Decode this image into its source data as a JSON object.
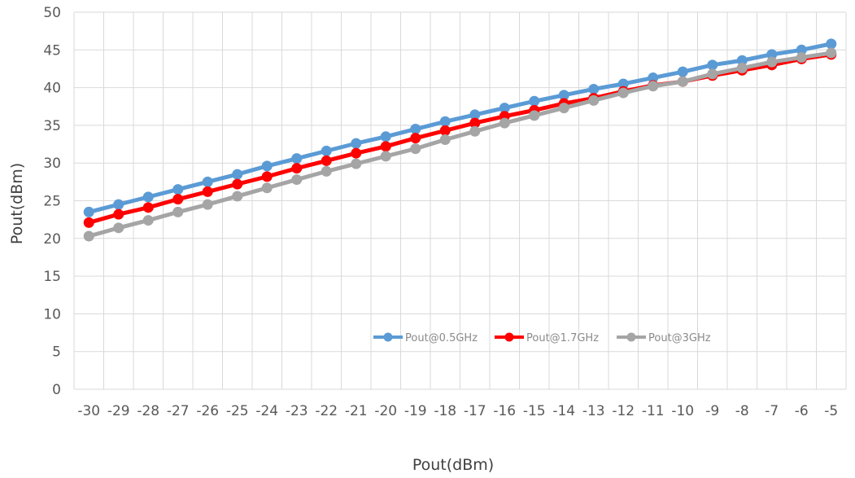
{
  "chart_data": {
    "type": "line",
    "xlabel": "Pout(dBm)",
    "ylabel": "Pout(dBm)",
    "x": [
      -30,
      -29,
      -28,
      -27,
      -26,
      -25,
      -24,
      -23,
      -22,
      -21,
      -20,
      -19,
      -18,
      -17,
      -16,
      -15,
      -14,
      -13,
      -12,
      -11,
      -10,
      -9,
      -8,
      -7,
      -6,
      -5
    ],
    "x_tick_labels": [
      "-30",
      "-29",
      "-28",
      "-27",
      "-26",
      "-25",
      "-24",
      "-23",
      "-22",
      "-21",
      "-20",
      "-19",
      "-18",
      "-17",
      "-16",
      "-15",
      "-14",
      "-13",
      "-12",
      "-11",
      "-10",
      "-9",
      "-8",
      "-7",
      "-6",
      "-5"
    ],
    "ylim": [
      0,
      50
    ],
    "y_ticks": [
      0,
      5,
      10,
      15,
      20,
      25,
      30,
      35,
      40,
      45,
      50
    ],
    "grid": true,
    "legend_position": "bottom-right",
    "series": [
      {
        "name": "Pout@0.5GHz",
        "color": "#5B9BD5",
        "values": [
          23.5,
          24.5,
          25.5,
          26.5,
          27.5,
          28.5,
          29.6,
          30.6,
          31.6,
          32.6,
          33.5,
          34.5,
          35.5,
          36.4,
          37.3,
          38.2,
          39.0,
          39.8,
          40.5,
          41.3,
          42.1,
          43.0,
          43.6,
          44.4,
          45.0,
          45.8
        ]
      },
      {
        "name": "Pout@1.7GHz",
        "color": "#FF0000",
        "values": [
          22.1,
          23.2,
          24.1,
          25.2,
          26.2,
          27.2,
          28.2,
          29.3,
          30.3,
          31.3,
          32.2,
          33.3,
          34.3,
          35.3,
          36.2,
          37.0,
          37.9,
          38.6,
          39.5,
          40.3,
          40.8,
          41.6,
          42.3,
          43.0,
          43.8,
          44.4
        ]
      },
      {
        "name": "Pout@3GHz",
        "color": "#A5A5A5",
        "values": [
          20.3,
          21.4,
          22.4,
          23.5,
          24.5,
          25.6,
          26.7,
          27.8,
          28.9,
          29.9,
          30.9,
          31.9,
          33.1,
          34.2,
          35.3,
          36.3,
          37.3,
          38.3,
          39.3,
          40.2,
          40.8,
          41.8,
          42.6,
          43.4,
          44.0,
          44.6
        ]
      }
    ]
  }
}
